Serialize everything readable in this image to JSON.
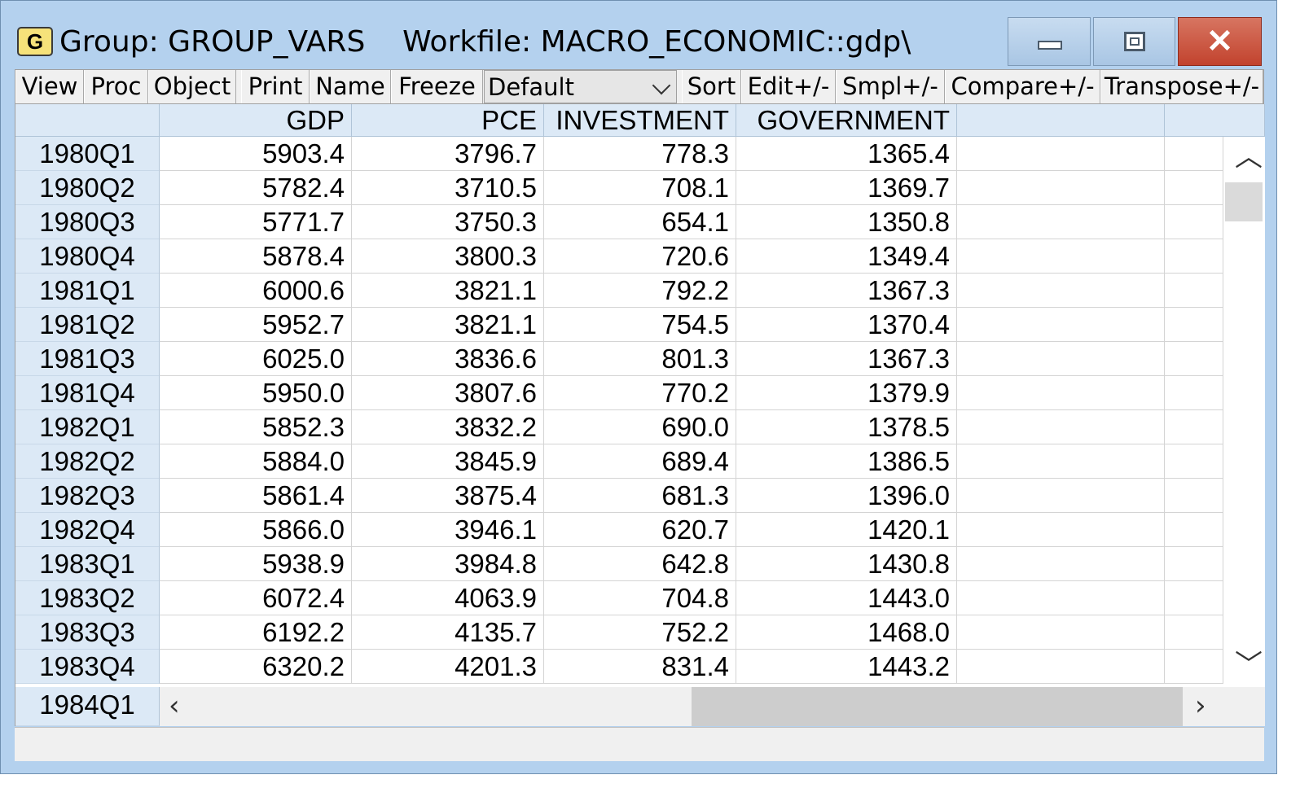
{
  "window": {
    "icon_letter": "G",
    "title": "Group: GROUP_VARS    Workfile: MACRO_ECONOMIC::gdp\\"
  },
  "toolbar": {
    "view": "View",
    "proc": "Proc",
    "object": "Object",
    "print": "Print",
    "name": "Name",
    "freeze": "Freeze",
    "display_mode": "Default",
    "sort": "Sort",
    "edit": "Edit+/-",
    "smpl": "Smpl+/-",
    "compare": "Compare+/-",
    "transpose": "Transpose+/-"
  },
  "table": {
    "columns": [
      "GDP",
      "PCE",
      "INVESTMENT",
      "GOVERNMENT"
    ],
    "rows": [
      {
        "label": "1980Q1",
        "values": [
          "5903.4",
          "3796.7",
          "778.3",
          "1365.4"
        ]
      },
      {
        "label": "1980Q2",
        "values": [
          "5782.4",
          "3710.5",
          "708.1",
          "1369.7"
        ]
      },
      {
        "label": "1980Q3",
        "values": [
          "5771.7",
          "3750.3",
          "654.1",
          "1350.8"
        ]
      },
      {
        "label": "1980Q4",
        "values": [
          "5878.4",
          "3800.3",
          "720.6",
          "1349.4"
        ]
      },
      {
        "label": "1981Q1",
        "values": [
          "6000.6",
          "3821.1",
          "792.2",
          "1367.3"
        ]
      },
      {
        "label": "1981Q2",
        "values": [
          "5952.7",
          "3821.1",
          "754.5",
          "1370.4"
        ]
      },
      {
        "label": "1981Q3",
        "values": [
          "6025.0",
          "3836.6",
          "801.3",
          "1367.3"
        ]
      },
      {
        "label": "1981Q4",
        "values": [
          "5950.0",
          "3807.6",
          "770.2",
          "1379.9"
        ]
      },
      {
        "label": "1982Q1",
        "values": [
          "5852.3",
          "3832.2",
          "690.0",
          "1378.5"
        ]
      },
      {
        "label": "1982Q2",
        "values": [
          "5884.0",
          "3845.9",
          "689.4",
          "1386.5"
        ]
      },
      {
        "label": "1982Q3",
        "values": [
          "5861.4",
          "3875.4",
          "681.3",
          "1396.0"
        ]
      },
      {
        "label": "1982Q4",
        "values": [
          "5866.0",
          "3946.1",
          "620.7",
          "1420.1"
        ]
      },
      {
        "label": "1983Q1",
        "values": [
          "5938.9",
          "3984.8",
          "642.8",
          "1430.8"
        ]
      },
      {
        "label": "1983Q2",
        "values": [
          "6072.4",
          "4063.9",
          "704.8",
          "1443.0"
        ]
      },
      {
        "label": "1983Q3",
        "values": [
          "6192.2",
          "4135.7",
          "752.2",
          "1468.0"
        ]
      },
      {
        "label": "1983Q4",
        "values": [
          "6320.2",
          "4201.3",
          "831.4",
          "1443.2"
        ]
      }
    ],
    "partial_row_label": "1984Q1"
  },
  "icons": {
    "minimize": "minimize-icon",
    "maximize": "maximize-icon",
    "close": "close-icon",
    "scroll_up": "chevron-up-icon",
    "scroll_down": "chevron-down-icon",
    "scroll_left": "chevron-left-icon",
    "scroll_right": "chevron-right-icon"
  },
  "colors": {
    "window_frame": "#b4d1ee",
    "header_bg": "#dce9f6",
    "close_button": "#c2432e",
    "icon_bg": "#f6e27a"
  }
}
